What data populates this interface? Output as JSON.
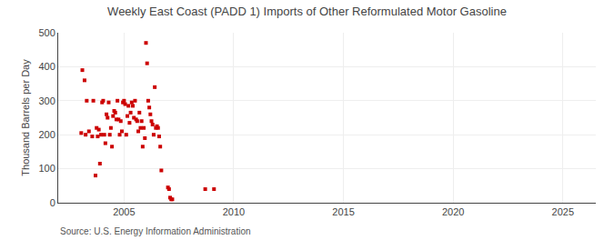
{
  "chart_data": {
    "type": "scatter",
    "title": "Weekly East Coast (PADD 1) Imports of Other Reformulated Motor Gasoline",
    "ylabel": "Thousand Barrels per Day",
    "annotations": [
      "Source: U.S. Energy Information Administration"
    ],
    "x": [
      2003.05,
      2003.1,
      2003.2,
      2003.25,
      2003.3,
      2003.4,
      2003.55,
      2003.6,
      2003.7,
      2003.75,
      2003.8,
      2003.85,
      2003.9,
      2003.95,
      2004.0,
      2004.05,
      2004.1,
      2004.15,
      2004.2,
      2004.25,
      2004.3,
      2004.35,
      2004.4,
      2004.45,
      2004.5,
      2004.55,
      2004.6,
      2004.65,
      2004.7,
      2004.75,
      2004.8,
      2004.85,
      2004.9,
      2004.95,
      2005.0,
      2005.05,
      2005.1,
      2005.15,
      2005.2,
      2005.25,
      2005.3,
      2005.35,
      2005.4,
      2005.45,
      2005.5,
      2005.55,
      2005.6,
      2005.65,
      2005.7,
      2005.75,
      2005.8,
      2005.85,
      2005.9,
      2005.95,
      2006.0,
      2006.05,
      2006.1,
      2006.15,
      2006.2,
      2006.25,
      2006.3,
      2006.35,
      2006.4,
      2006.45,
      2006.5,
      2006.55,
      2006.6,
      2006.65,
      2006.7,
      2007.0,
      2007.05,
      2007.1,
      2007.15,
      2007.2,
      2008.7,
      2009.1
    ],
    "values": [
      205,
      390,
      360,
      200,
      300,
      210,
      195,
      300,
      80,
      220,
      195,
      215,
      115,
      200,
      295,
      300,
      200,
      175,
      260,
      250,
      295,
      200,
      220,
      165,
      255,
      270,
      265,
      245,
      300,
      245,
      200,
      240,
      210,
      295,
      300,
      290,
      200,
      255,
      285,
      235,
      265,
      295,
      285,
      250,
      300,
      245,
      240,
      210,
      265,
      220,
      240,
      165,
      220,
      190,
      470,
      410,
      300,
      280,
      260,
      240,
      230,
      200,
      340,
      220,
      225,
      220,
      195,
      165,
      95,
      45,
      40,
      15,
      10,
      10,
      40,
      40
    ],
    "color": "#cc0000",
    "marker": "square",
    "xlim": [
      2002.0,
      2026.5
    ],
    "ylim": [
      0,
      500
    ],
    "xticks": [
      2005,
      2010,
      2015,
      2020,
      2025
    ],
    "yticks": [
      0,
      100,
      200,
      300,
      400,
      500
    ],
    "grid": true
  }
}
